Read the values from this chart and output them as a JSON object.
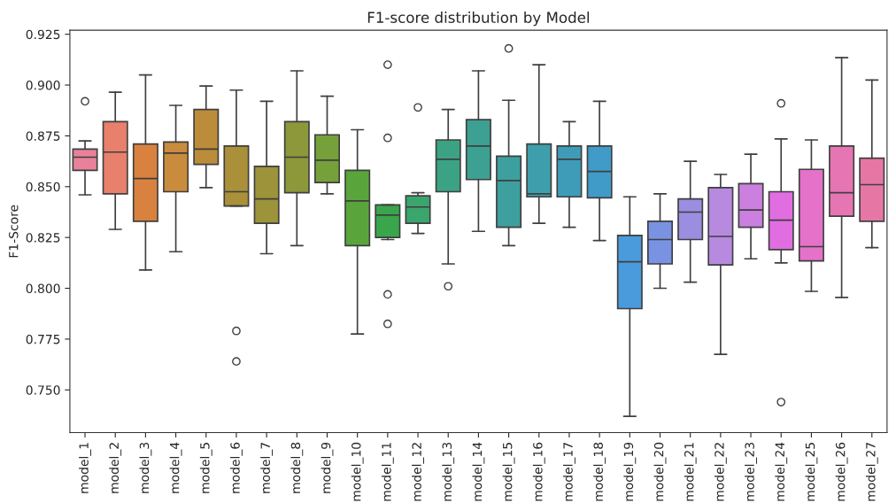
{
  "chart_data": {
    "type": "box",
    "title": "F1-score distribution by Model",
    "ylabel": "F1-Score",
    "categories": [
      "model_1",
      "model_2",
      "model_3",
      "model_4",
      "model_5",
      "model_6",
      "model_7",
      "model_8",
      "model_9",
      "model_10",
      "model_11",
      "model_12",
      "model_13",
      "model_14",
      "model_15",
      "model_16",
      "model_17",
      "model_18",
      "model_19",
      "model_20",
      "model_21",
      "model_22",
      "model_23",
      "model_24",
      "model_25",
      "model_26",
      "model_27"
    ],
    "colors": [
      "#e8829a",
      "#e8806c",
      "#d9823f",
      "#c98b3c",
      "#bb8d3b",
      "#ab903a",
      "#9c933a",
      "#8c9839",
      "#75a03a",
      "#5aa53b",
      "#39a64c",
      "#3aa56c",
      "#3ba283",
      "#3ca092",
      "#3d9f9e",
      "#3e9eab",
      "#3f9cb8",
      "#409bc8",
      "#4a9bdc",
      "#7a92e2",
      "#9b8ee0",
      "#b78adf",
      "#cb80e0",
      "#e16ee0",
      "#e472c8",
      "#e675b3",
      "#e677a4"
    ],
    "boxes": [
      {
        "low": 0.846,
        "q1": 0.858,
        "median": 0.8645,
        "q3": 0.8685,
        "high": 0.8725,
        "outliers": [
          0.892
        ]
      },
      {
        "low": 0.829,
        "q1": 0.8465,
        "median": 0.867,
        "q3": 0.882,
        "high": 0.8965
      },
      {
        "low": 0.809,
        "q1": 0.833,
        "median": 0.854,
        "q3": 0.871,
        "high": 0.905
      },
      {
        "low": 0.818,
        "q1": 0.8475,
        "median": 0.8665,
        "q3": 0.872,
        "high": 0.89
      },
      {
        "low": 0.8495,
        "q1": 0.861,
        "median": 0.8685,
        "q3": 0.888,
        "high": 0.8995
      },
      {
        "low": 0.8405,
        "q1": 0.8405,
        "median": 0.8475,
        "q3": 0.87,
        "high": 0.8975,
        "outliers": [
          0.779,
          0.764
        ]
      },
      {
        "low": 0.817,
        "q1": 0.832,
        "median": 0.844,
        "q3": 0.86,
        "high": 0.892
      },
      {
        "low": 0.821,
        "q1": 0.847,
        "median": 0.8645,
        "q3": 0.882,
        "high": 0.907
      },
      {
        "low": 0.8465,
        "q1": 0.852,
        "median": 0.863,
        "q3": 0.8755,
        "high": 0.8945
      },
      {
        "low": 0.7775,
        "q1": 0.821,
        "median": 0.843,
        "q3": 0.858,
        "high": 0.878
      },
      {
        "low": 0.824,
        "q1": 0.825,
        "median": 0.836,
        "q3": 0.841,
        "high": 0.841,
        "outliers": [
          0.91,
          0.874,
          0.797,
          0.7825
        ]
      },
      {
        "low": 0.827,
        "q1": 0.832,
        "median": 0.84,
        "q3": 0.8455,
        "high": 0.847,
        "outliers": [
          0.889
        ]
      },
      {
        "low": 0.812,
        "q1": 0.8475,
        "median": 0.8635,
        "q3": 0.873,
        "high": 0.888,
        "outliers": [
          0.801
        ]
      },
      {
        "low": 0.828,
        "q1": 0.8535,
        "median": 0.87,
        "q3": 0.883,
        "high": 0.907
      },
      {
        "low": 0.821,
        "q1": 0.83,
        "median": 0.853,
        "q3": 0.865,
        "high": 0.8925,
        "outliers": [
          0.918
        ]
      },
      {
        "low": 0.832,
        "q1": 0.845,
        "median": 0.8465,
        "q3": 0.871,
        "high": 0.91
      },
      {
        "low": 0.83,
        "q1": 0.845,
        "median": 0.8635,
        "q3": 0.87,
        "high": 0.882
      },
      {
        "low": 0.8235,
        "q1": 0.8445,
        "median": 0.8575,
        "q3": 0.87,
        "high": 0.892
      },
      {
        "low": 0.737,
        "q1": 0.79,
        "median": 0.813,
        "q3": 0.826,
        "high": 0.845
      },
      {
        "low": 0.8,
        "q1": 0.812,
        "median": 0.824,
        "q3": 0.833,
        "high": 0.8465
      },
      {
        "low": 0.803,
        "q1": 0.824,
        "median": 0.8375,
        "q3": 0.844,
        "high": 0.8625
      },
      {
        "low": 0.7675,
        "q1": 0.8115,
        "median": 0.8255,
        "q3": 0.8495,
        "high": 0.856
      },
      {
        "low": 0.8145,
        "q1": 0.83,
        "median": 0.8385,
        "q3": 0.8515,
        "high": 0.866
      },
      {
        "low": 0.8125,
        "q1": 0.819,
        "median": 0.8335,
        "q3": 0.8475,
        "high": 0.8735,
        "outliers": [
          0.891,
          0.744
        ]
      },
      {
        "low": 0.7985,
        "q1": 0.8135,
        "median": 0.8205,
        "q3": 0.8585,
        "high": 0.873
      },
      {
        "low": 0.7955,
        "q1": 0.8355,
        "median": 0.847,
        "q3": 0.87,
        "high": 0.9135
      },
      {
        "low": 0.82,
        "q1": 0.833,
        "median": 0.851,
        "q3": 0.864,
        "high": 0.9025
      }
    ],
    "ylim": [
      0.729,
      0.927
    ],
    "yticks": [
      {
        "value": 0.75,
        "label": "0.750"
      },
      {
        "value": 0.775,
        "label": "0.775"
      },
      {
        "value": 0.8,
        "label": "0.800"
      },
      {
        "value": 0.825,
        "label": "0.825"
      },
      {
        "value": 0.85,
        "label": "0.850"
      },
      {
        "value": 0.875,
        "label": "0.875"
      },
      {
        "value": 0.9,
        "label": "0.900"
      },
      {
        "value": 0.925,
        "label": "0.925"
      }
    ],
    "grid": false
  }
}
